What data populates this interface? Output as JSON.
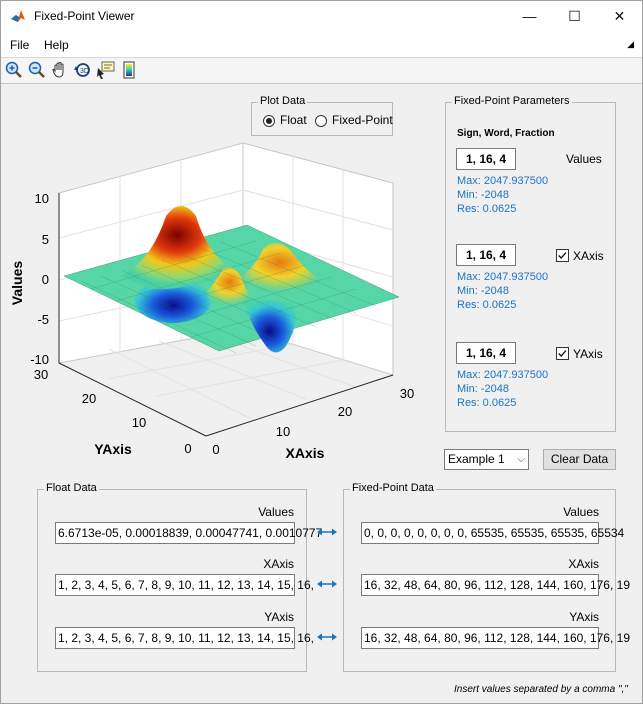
{
  "window": {
    "title": "Fixed-Point Viewer",
    "minimize": "—",
    "maximize": "☐",
    "close": "✕"
  },
  "menu": {
    "file": "File",
    "help": "Help"
  },
  "toolbar": {
    "tools": [
      "zoom-in",
      "zoom-out",
      "pan",
      "rotate-3d",
      "data-cursor",
      "colorbar"
    ]
  },
  "plot_data": {
    "title": "Plot Data",
    "float_label": "Float",
    "fixed_label": "Fixed-Point",
    "selected": "Float"
  },
  "plot": {
    "zlabel": "Values",
    "xlabel": "XAxis",
    "ylabel": "YAxis",
    "z_ticks": [
      "10",
      "5",
      "0",
      "-5",
      "-10"
    ],
    "x_ticks": [
      "0",
      "10",
      "20",
      "30"
    ],
    "y_ticks": [
      "0",
      "10",
      "20",
      "30"
    ]
  },
  "params": {
    "title": "Fixed-Point Parameters",
    "header": "Sign, Word, Fraction",
    "values": {
      "field": "1, 16, 4",
      "label": "Values",
      "max": "Max:  2047.937500",
      "min": "Min:  -2048",
      "res": "Res:  0.0625"
    },
    "xaxis": {
      "field": "1, 16, 4",
      "label": "XAxis",
      "checked": true,
      "max": "Max:  2047.937500",
      "min": "Min:  -2048",
      "res": "Res:  0.0625"
    },
    "yaxis": {
      "field": "1, 16, 4",
      "label": "YAxis",
      "checked": true,
      "max": "Max:  2047.937500",
      "min": "Min:  -2048",
      "res": "Res:  0.0625"
    }
  },
  "example_select": "Example 1",
  "clear_button": "Clear Data",
  "float_data": {
    "title": "Float Data",
    "values_label": "Values",
    "values": "6.6713e-05, 0.00018839, 0.00047741, 0.0010777",
    "xaxis_label": "XAxis",
    "xaxis": "1, 2, 3, 4, 5, 6, 7, 8, 9, 10, 11, 12, 13, 14, 15, 16,",
    "yaxis_label": "YAxis",
    "yaxis": "1, 2, 3, 4, 5, 6, 7, 8, 9, 10, 11, 12, 13, 14, 15, 16,"
  },
  "fixed_data": {
    "title": "Fixed-Point Data",
    "values_label": "Values",
    "values": "0, 0, 0, 0, 0, 0, 0, 0, 65535, 65535, 65535, 65534",
    "xaxis_label": "XAxis",
    "xaxis": "16, 32, 48, 64, 80, 96, 112, 128, 144, 160, 176, 19",
    "yaxis_label": "YAxis",
    "yaxis": "16, 32, 48, 64, 80, 96, 112, 128, 144, 160, 176, 19"
  },
  "hint": "Insert values separated by a comma \",\""
}
